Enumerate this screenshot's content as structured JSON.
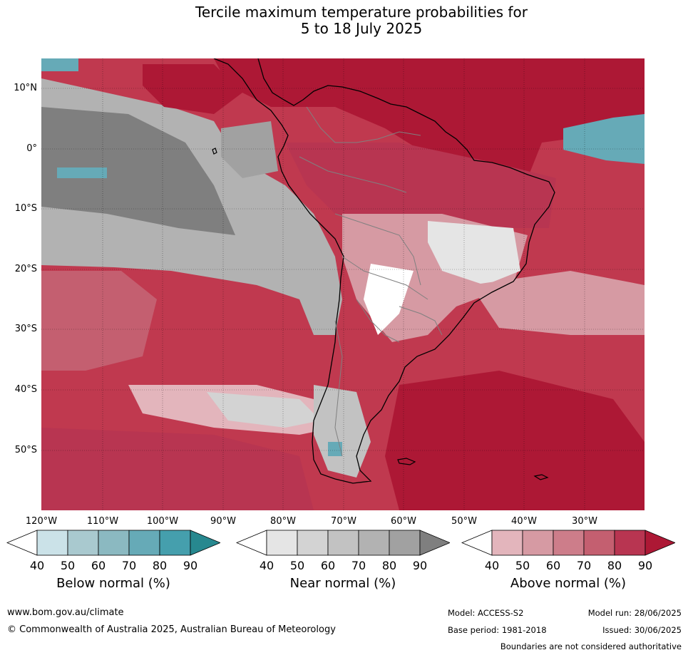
{
  "title": {
    "line1": "Tercile maximum temperature probabilities for",
    "line2": "5 to 18 July 2025"
  },
  "map": {
    "lat_labels": [
      "10°N",
      "0°",
      "10°S",
      "20°S",
      "30°S",
      "40°S",
      "50°S"
    ],
    "lon_labels": [
      "120°W",
      "110°W",
      "100°W",
      "90°W",
      "80°W",
      "70°W",
      "60°W",
      "50°W",
      "40°W",
      "30°W"
    ],
    "colors": {
      "above": [
        "#e3b5bc",
        "#d69aa3",
        "#cd7d8a",
        "#c45f70",
        "#b83551",
        "#ad1835"
      ],
      "near": [
        "#e5e5e5",
        "#d3d3d3",
        "#c2c2c2",
        "#b2b2b2",
        "#a1a1a1",
        "#7f7f7f"
      ],
      "below": [
        "#cbe2e8",
        "#a9c9cf",
        "#8bb9c1",
        "#66aab7",
        "#459fad",
        "#27888f"
      ],
      "ocean_base": "#c0394f",
      "coast": "#000000",
      "border": "#808080"
    }
  },
  "legends": [
    {
      "title": "Below normal (%)",
      "ticks": [
        "40",
        "50",
        "60",
        "70",
        "80",
        "90"
      ],
      "colors": [
        "#ffffff",
        "#cbe2e8",
        "#a9c9cf",
        "#8bb9c1",
        "#66aab7",
        "#459fad",
        "#27888f"
      ]
    },
    {
      "title": "Near normal (%)",
      "ticks": [
        "40",
        "50",
        "60",
        "70",
        "80",
        "90"
      ],
      "colors": [
        "#ffffff",
        "#e5e5e5",
        "#d3d3d3",
        "#c2c2c2",
        "#b2b2b2",
        "#a1a1a1",
        "#7f7f7f"
      ]
    },
    {
      "title": "Above normal (%)",
      "ticks": [
        "40",
        "50",
        "60",
        "70",
        "80",
        "90"
      ],
      "colors": [
        "#ffffff",
        "#e3b5bc",
        "#d69aa3",
        "#cd7d8a",
        "#c45f70",
        "#b83551",
        "#ad1835"
      ]
    }
  ],
  "footer": {
    "website": "www.bom.gov.au/climate",
    "copyright": "© Commonwealth of Australia 2025, Australian Bureau of Meteorology",
    "model": "Model: ACCESS-S2",
    "model_run": "Model run: 28/06/2025",
    "base_period": "Base period: 1981-2018",
    "issued": "Issued: 30/06/2025",
    "disclaimer": "Boundaries are not considered authoritative"
  }
}
